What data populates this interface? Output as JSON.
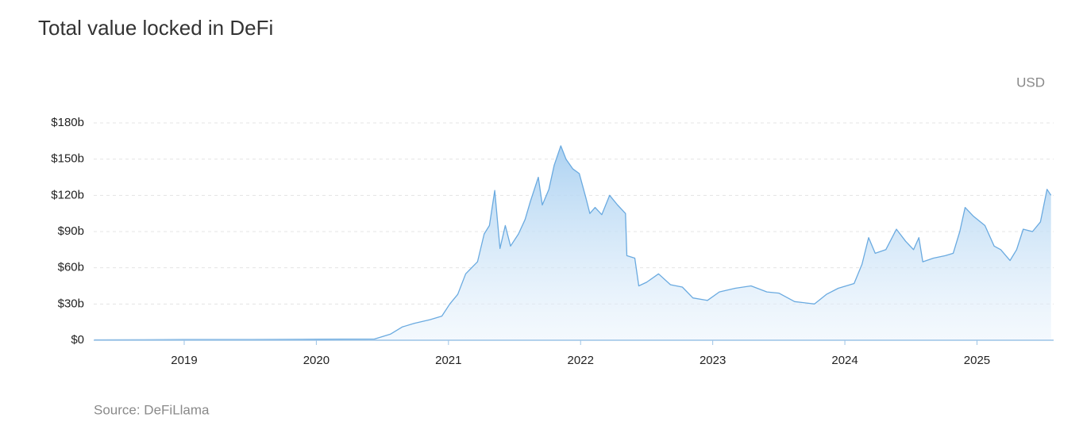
{
  "chart_data": {
    "type": "area",
    "title": "Total value locked in DeFi",
    "unit_label": "USD",
    "source": "Source: DeFiLlama",
    "color": "#6aaae0",
    "x": [
      2018.32,
      2018.7,
      2019.0,
      2019.5,
      2020.0,
      2020.2,
      2020.44,
      2020.56,
      2020.65,
      2020.74,
      2020.86,
      2020.95,
      2021.01,
      2021.07,
      2021.13,
      2021.22,
      2021.27,
      2021.31,
      2021.35,
      2021.39,
      2021.43,
      2021.47,
      2021.53,
      2021.58,
      2021.62,
      2021.68,
      2021.71,
      2021.76,
      2021.8,
      2021.85,
      2021.89,
      2021.94,
      2021.99,
      2022.04,
      2022.07,
      2022.11,
      2022.16,
      2022.22,
      2022.28,
      2022.34,
      2022.35,
      2022.41,
      2022.44,
      2022.5,
      2022.59,
      2022.68,
      2022.77,
      2022.85,
      2022.96,
      2023.05,
      2023.17,
      2023.29,
      2023.41,
      2023.5,
      2023.62,
      2023.77,
      2023.86,
      2023.95,
      2024.07,
      2024.13,
      2024.18,
      2024.23,
      2024.31,
      2024.39,
      2024.46,
      2024.52,
      2024.56,
      2024.59,
      2024.67,
      2024.76,
      2024.82,
      2024.87,
      2024.91,
      2024.97,
      2025.06,
      2025.13,
      2025.18,
      2025.25,
      2025.3,
      2025.35,
      2025.42,
      2025.48,
      2025.53,
      2025.56
    ],
    "values": [
      0.3,
      0.4,
      0.5,
      0.6,
      0.8,
      0.9,
      1,
      5,
      11,
      14,
      17,
      20,
      30,
      38,
      55,
      65,
      88,
      95,
      124,
      76,
      95,
      78,
      88,
      100,
      115,
      135,
      112,
      125,
      145,
      161,
      150,
      142,
      138,
      118,
      105,
      110,
      104,
      120,
      112,
      105,
      70,
      68,
      45,
      48,
      55,
      46,
      44,
      35,
      33,
      40,
      43,
      45,
      40,
      39,
      32,
      30,
      38,
      43,
      47,
      63,
      85,
      72,
      75,
      92,
      82,
      75,
      85,
      65,
      68,
      70,
      72,
      90,
      110,
      103,
      95,
      78,
      75,
      66,
      75,
      92,
      90,
      98,
      125,
      120
    ],
    "xlim": [
      2018.315,
      2025.58
    ],
    "xticks": [
      2019,
      2020,
      2021,
      2022,
      2023,
      2024,
      2025
    ],
    "ylim": [
      0,
      180
    ],
    "yticks": [
      {
        "value": 0,
        "label": "$0"
      },
      {
        "value": 30,
        "label": "$30b"
      },
      {
        "value": 60,
        "label": "$60b"
      },
      {
        "value": 90,
        "label": "$90b"
      },
      {
        "value": 120,
        "label": "$120b"
      },
      {
        "value": 150,
        "label": "$150b"
      },
      {
        "value": 180,
        "label": "$180b"
      }
    ],
    "grid": true
  }
}
